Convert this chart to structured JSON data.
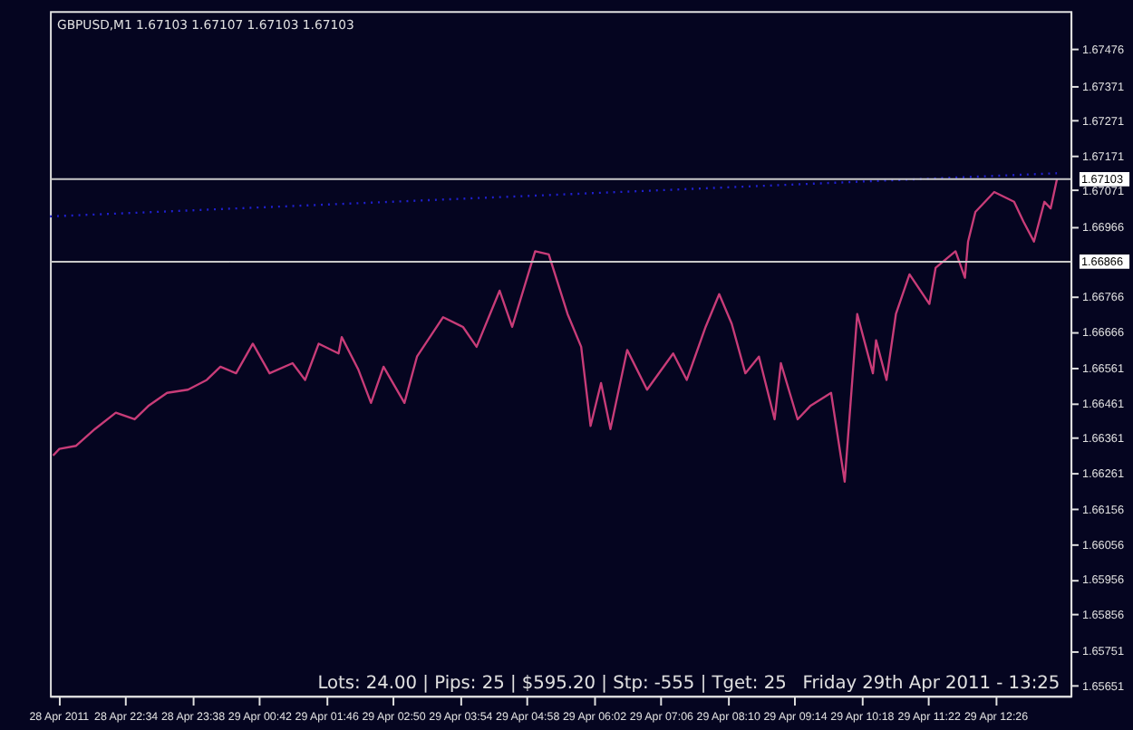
{
  "chart_data": {
    "type": "line",
    "title": "GBPUSD,M1  1.67103 1.67107 1.67103 1.67103",
    "annotations": [
      "Lots: 24.00 | Pips: 25 | $595.20 | Stp: -555 | Tget: 25",
      "Friday 29th Apr 2011 - 13:25"
    ],
    "xlim": [
      "2011-04-28T21:22",
      "2011-04-29T13:38"
    ],
    "ylim": [
      1.65621,
      1.67585
    ],
    "xticks": [
      {
        "value": "2011-04-28T21:30",
        "label": "28 Apr 2011"
      },
      {
        "value": "2011-04-28T22:34",
        "label": "28 Apr 22:34"
      },
      {
        "value": "2011-04-28T23:38",
        "label": "28 Apr 23:38"
      },
      {
        "value": "2011-04-29T00:42",
        "label": "29 Apr 00:42"
      },
      {
        "value": "2011-04-29T01:46",
        "label": "29 Apr 01:46"
      },
      {
        "value": "2011-04-29T02:50",
        "label": "29 Apr 02:50"
      },
      {
        "value": "2011-04-29T03:54",
        "label": "29 Apr 03:54"
      },
      {
        "value": "2011-04-29T04:58",
        "label": "29 Apr 04:58"
      },
      {
        "value": "2011-04-29T06:02",
        "label": "29 Apr 06:02"
      },
      {
        "value": "2011-04-29T07:06",
        "label": "29 Apr 07:06"
      },
      {
        "value": "2011-04-29T08:10",
        "label": "29 Apr 08:10"
      },
      {
        "value": "2011-04-29T09:14",
        "label": "29 Apr 09:14"
      },
      {
        "value": "2011-04-29T10:18",
        "label": "29 Apr 10:18"
      },
      {
        "value": "2011-04-29T11:22",
        "label": "29 Apr 11:22"
      },
      {
        "value": "2011-04-29T12:26",
        "label": "29 Apr 12:26"
      }
    ],
    "grid": false,
    "yticks": [
      1.67476,
      1.67371,
      1.67271,
      1.67171,
      1.67071,
      1.66966,
      1.66766,
      1.66666,
      1.66561,
      1.66461,
      1.66361,
      1.66261,
      1.66156,
      1.66056,
      1.65956,
      1.65856,
      1.65751,
      1.65651
    ],
    "ref_lines": [
      {
        "axis": "y",
        "value": 1.67103,
        "label": "1.67103",
        "color": "#c8c8c8"
      },
      {
        "axis": "y",
        "value": 1.66866,
        "label": "1.66866",
        "color": "#c8c8c8"
      }
    ],
    "series": [
      {
        "color": "#c83c78",
        "line_style": "solid",
        "x": [
          "2011-04-28T21:25",
          "2011-04-28T21:31",
          "2011-04-28T21:47",
          "2011-04-28T22:05",
          "2011-04-28T22:25",
          "2011-04-28T22:43",
          "2011-04-28T22:56",
          "2011-04-28T23:14",
          "2011-04-28T23:34",
          "2011-04-28T23:52",
          "2011-04-29T00:05",
          "2011-04-29T00:20",
          "2011-04-29T00:36",
          "2011-04-29T00:52",
          "2011-04-29T01:14",
          "2011-04-29T01:26",
          "2011-04-29T01:39",
          "2011-04-29T01:58",
          "2011-04-29T02:01",
          "2011-04-29T02:17",
          "2011-04-29T02:29",
          "2011-04-29T02:41",
          "2011-04-29T03:01",
          "2011-04-29T03:13",
          "2011-04-29T03:38",
          "2011-04-29T03:57",
          "2011-04-29T04:10",
          "2011-04-29T04:32",
          "2011-04-29T04:44",
          "2011-04-29T05:06",
          "2011-04-29T05:19",
          "2011-04-29T05:37",
          "2011-04-29T05:50",
          "2011-04-29T05:59",
          "2011-04-29T06:09",
          "2011-04-29T06:18",
          "2011-04-29T06:34",
          "2011-04-29T06:53",
          "2011-04-29T07:18",
          "2011-04-29T07:31",
          "2011-04-29T07:49",
          "2011-04-29T08:02",
          "2011-04-29T08:14",
          "2011-04-29T08:27",
          "2011-04-29T08:40",
          "2011-04-29T08:55",
          "2011-04-29T09:01",
          "2011-04-29T09:17",
          "2011-04-29T09:29",
          "2011-04-29T09:49",
          "2011-04-29T10:02",
          "2011-04-29T10:14",
          "2011-04-29T10:29",
          "2011-04-29T10:32",
          "2011-04-29T10:42",
          "2011-04-29T10:51",
          "2011-04-29T11:04",
          "2011-04-29T11:23",
          "2011-04-29T11:29",
          "2011-04-29T11:48",
          "2011-04-29T11:57",
          "2011-04-29T12:00",
          "2011-04-29T12:07",
          "2011-04-29T12:25",
          "2011-04-29T12:44",
          "2011-04-29T12:53",
          "2011-04-29T13:03",
          "2011-04-29T13:13",
          "2011-04-29T13:19",
          "2011-04-29T13:25"
        ],
        "values": [
          1.6631,
          1.66329,
          1.66338,
          1.66386,
          1.66433,
          1.66414,
          1.66452,
          1.6649,
          1.66499,
          1.66527,
          1.66565,
          1.66546,
          1.66631,
          1.66546,
          1.66575,
          1.66527,
          1.66631,
          1.66603,
          1.6665,
          1.66556,
          1.66461,
          1.66565,
          1.66461,
          1.66594,
          1.66707,
          1.66679,
          1.66622,
          1.66783,
          1.66679,
          1.66896,
          1.66887,
          1.66716,
          1.66622,
          1.66395,
          1.66518,
          1.66386,
          1.66613,
          1.66499,
          1.66603,
          1.66527,
          1.66679,
          1.66773,
          1.66688,
          1.66546,
          1.66594,
          1.66414,
          1.66575,
          1.66414,
          1.66452,
          1.6649,
          1.66235,
          1.66716,
          1.66546,
          1.66641,
          1.66527,
          1.66716,
          1.6683,
          1.66745,
          1.66849,
          1.66896,
          1.6682,
          1.66924,
          1.67009,
          1.67066,
          1.67038,
          1.66981,
          1.66924,
          1.67038,
          1.67019,
          1.67103
        ]
      },
      {
        "color": "#2020d0",
        "line_style": "dotted",
        "x": [
          "2011-04-28T21:22",
          "2011-04-29T13:25"
        ],
        "values": [
          1.66996,
          1.6712
        ]
      }
    ]
  }
}
